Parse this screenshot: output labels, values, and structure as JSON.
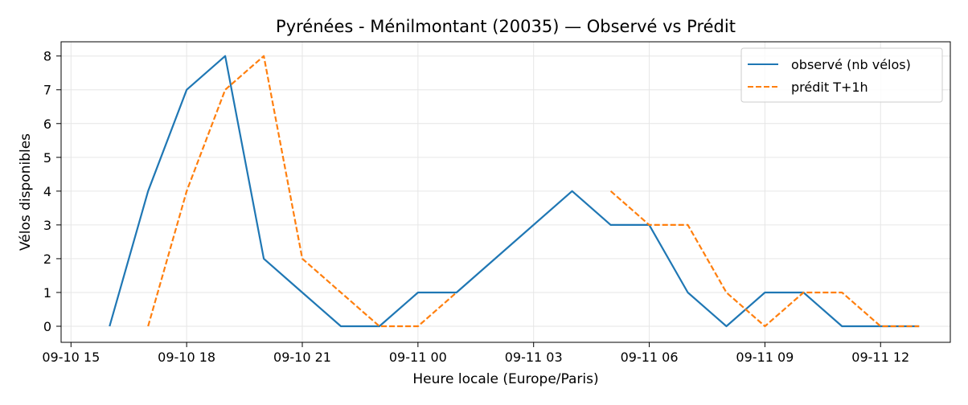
{
  "chart_data": {
    "type": "line",
    "title": "Pyrénées - Ménilmontant (20035) — Observé vs Prédit",
    "xlabel": "Heure locale (Europe/Paris)",
    "ylabel": "Vélos disponibles",
    "x_ticks": [
      "09-10 15",
      "09-10 18",
      "09-10 21",
      "09-11 00",
      "09-11 03",
      "09-11 06",
      "09-11 09",
      "09-11 12"
    ],
    "y_ticks": [
      "0",
      "1",
      "2",
      "3",
      "4",
      "5",
      "6",
      "7",
      "8"
    ],
    "xlim": [
      "2025-09-10 15:00",
      "2025-09-11 13:00"
    ],
    "ylim": [
      0,
      8
    ],
    "grid": true,
    "legend_position": "top-right",
    "series": [
      {
        "name": "observé (nb vélos)",
        "color": "#1f77b4",
        "style": "solid",
        "points": [
          [
            "2025-09-10 16:00",
            0
          ],
          [
            "2025-09-10 17:00",
            4
          ],
          [
            "2025-09-10 18:00",
            7
          ],
          [
            "2025-09-10 19:00",
            8
          ],
          [
            "2025-09-10 20:00",
            2
          ],
          [
            "2025-09-10 21:00",
            1
          ],
          [
            "2025-09-10 22:00",
            0
          ],
          [
            "2025-09-10 23:00",
            0
          ],
          [
            "2025-09-11 00:00",
            1
          ],
          [
            "2025-09-11 01:00",
            1
          ],
          [
            "2025-09-11 04:00",
            4
          ],
          [
            "2025-09-11 05:00",
            3
          ],
          [
            "2025-09-11 06:00",
            3
          ],
          [
            "2025-09-11 07:00",
            1
          ],
          [
            "2025-09-11 08:00",
            0
          ],
          [
            "2025-09-11 09:00",
            1
          ],
          [
            "2025-09-11 10:00",
            1
          ],
          [
            "2025-09-11 11:00",
            0
          ],
          [
            "2025-09-11 12:00",
            0
          ],
          [
            "2025-09-11 13:00",
            0
          ]
        ]
      },
      {
        "name": "prédit T+1h",
        "color": "#ff7f0e",
        "style": "dashed",
        "segments": [
          [
            [
              "2025-09-10 17:00",
              0
            ],
            [
              "2025-09-10 18:00",
              4
            ],
            [
              "2025-09-10 19:00",
              7
            ],
            [
              "2025-09-10 20:00",
              8
            ],
            [
              "2025-09-10 21:00",
              2
            ],
            [
              "2025-09-10 22:00",
              1
            ],
            [
              "2025-09-10 23:00",
              0
            ],
            [
              "2025-09-11 00:00",
              0
            ],
            [
              "2025-09-11 01:00",
              1
            ]
          ],
          [
            [
              "2025-09-11 05:00",
              4
            ],
            [
              "2025-09-11 06:00",
              3
            ],
            [
              "2025-09-11 07:00",
              3
            ],
            [
              "2025-09-11 08:00",
              1
            ],
            [
              "2025-09-11 09:00",
              0
            ],
            [
              "2025-09-11 10:00",
              1
            ],
            [
              "2025-09-11 11:00",
              1
            ],
            [
              "2025-09-11 12:00",
              0
            ],
            [
              "2025-09-11 13:00",
              0
            ]
          ]
        ]
      }
    ]
  }
}
